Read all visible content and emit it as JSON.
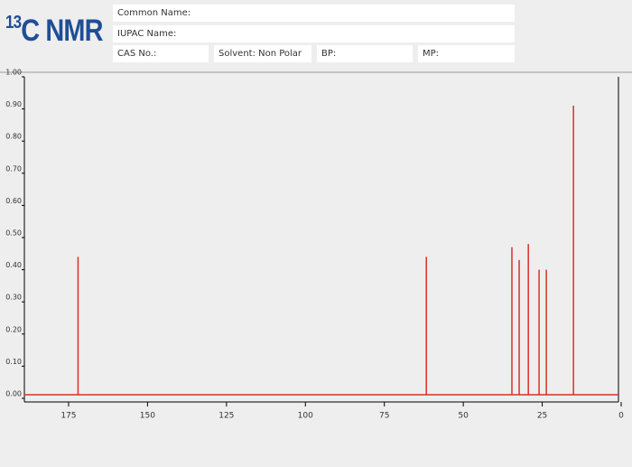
{
  "header": {
    "title_sup": "13",
    "title": "C NMR",
    "fields": [
      "Common Name:",
      "IUPAC Name:",
      "CAS No.:",
      "Solvent: Non Polar",
      "BP:",
      "MP:"
    ]
  },
  "chart_data": {
    "type": "stem",
    "color": "#d9302c",
    "x": [
      172.0,
      61.7,
      34.6,
      32.3,
      29.4,
      26.0,
      23.7,
      15.1
    ],
    "values": [
      0.44,
      0.44,
      0.47,
      0.43,
      0.48,
      0.4,
      0.4,
      0.91
    ],
    "xlim": [
      189,
      0
    ],
    "xticks": [
      175,
      150,
      125,
      100,
      75,
      50,
      25,
      0
    ],
    "ylim": [
      0,
      1
    ],
    "yticks": [
      {
        "value": 0,
        "label": "0.00"
      },
      {
        "value": 0.1,
        "label": "0.10"
      },
      {
        "value": 0.2,
        "label": "0.20"
      },
      {
        "value": 0.3,
        "label": "0.30"
      },
      {
        "value": 0.4,
        "label": "0.40"
      },
      {
        "value": 0.5,
        "label": "0.50"
      },
      {
        "value": 0.6,
        "label": "0.60"
      },
      {
        "value": 0.7,
        "label": "0.70"
      },
      {
        "value": 0.8,
        "label": "0.80"
      },
      {
        "value": 0.9,
        "label": "0.90"
      },
      {
        "value": 1,
        "label": "1.00"
      }
    ]
  }
}
